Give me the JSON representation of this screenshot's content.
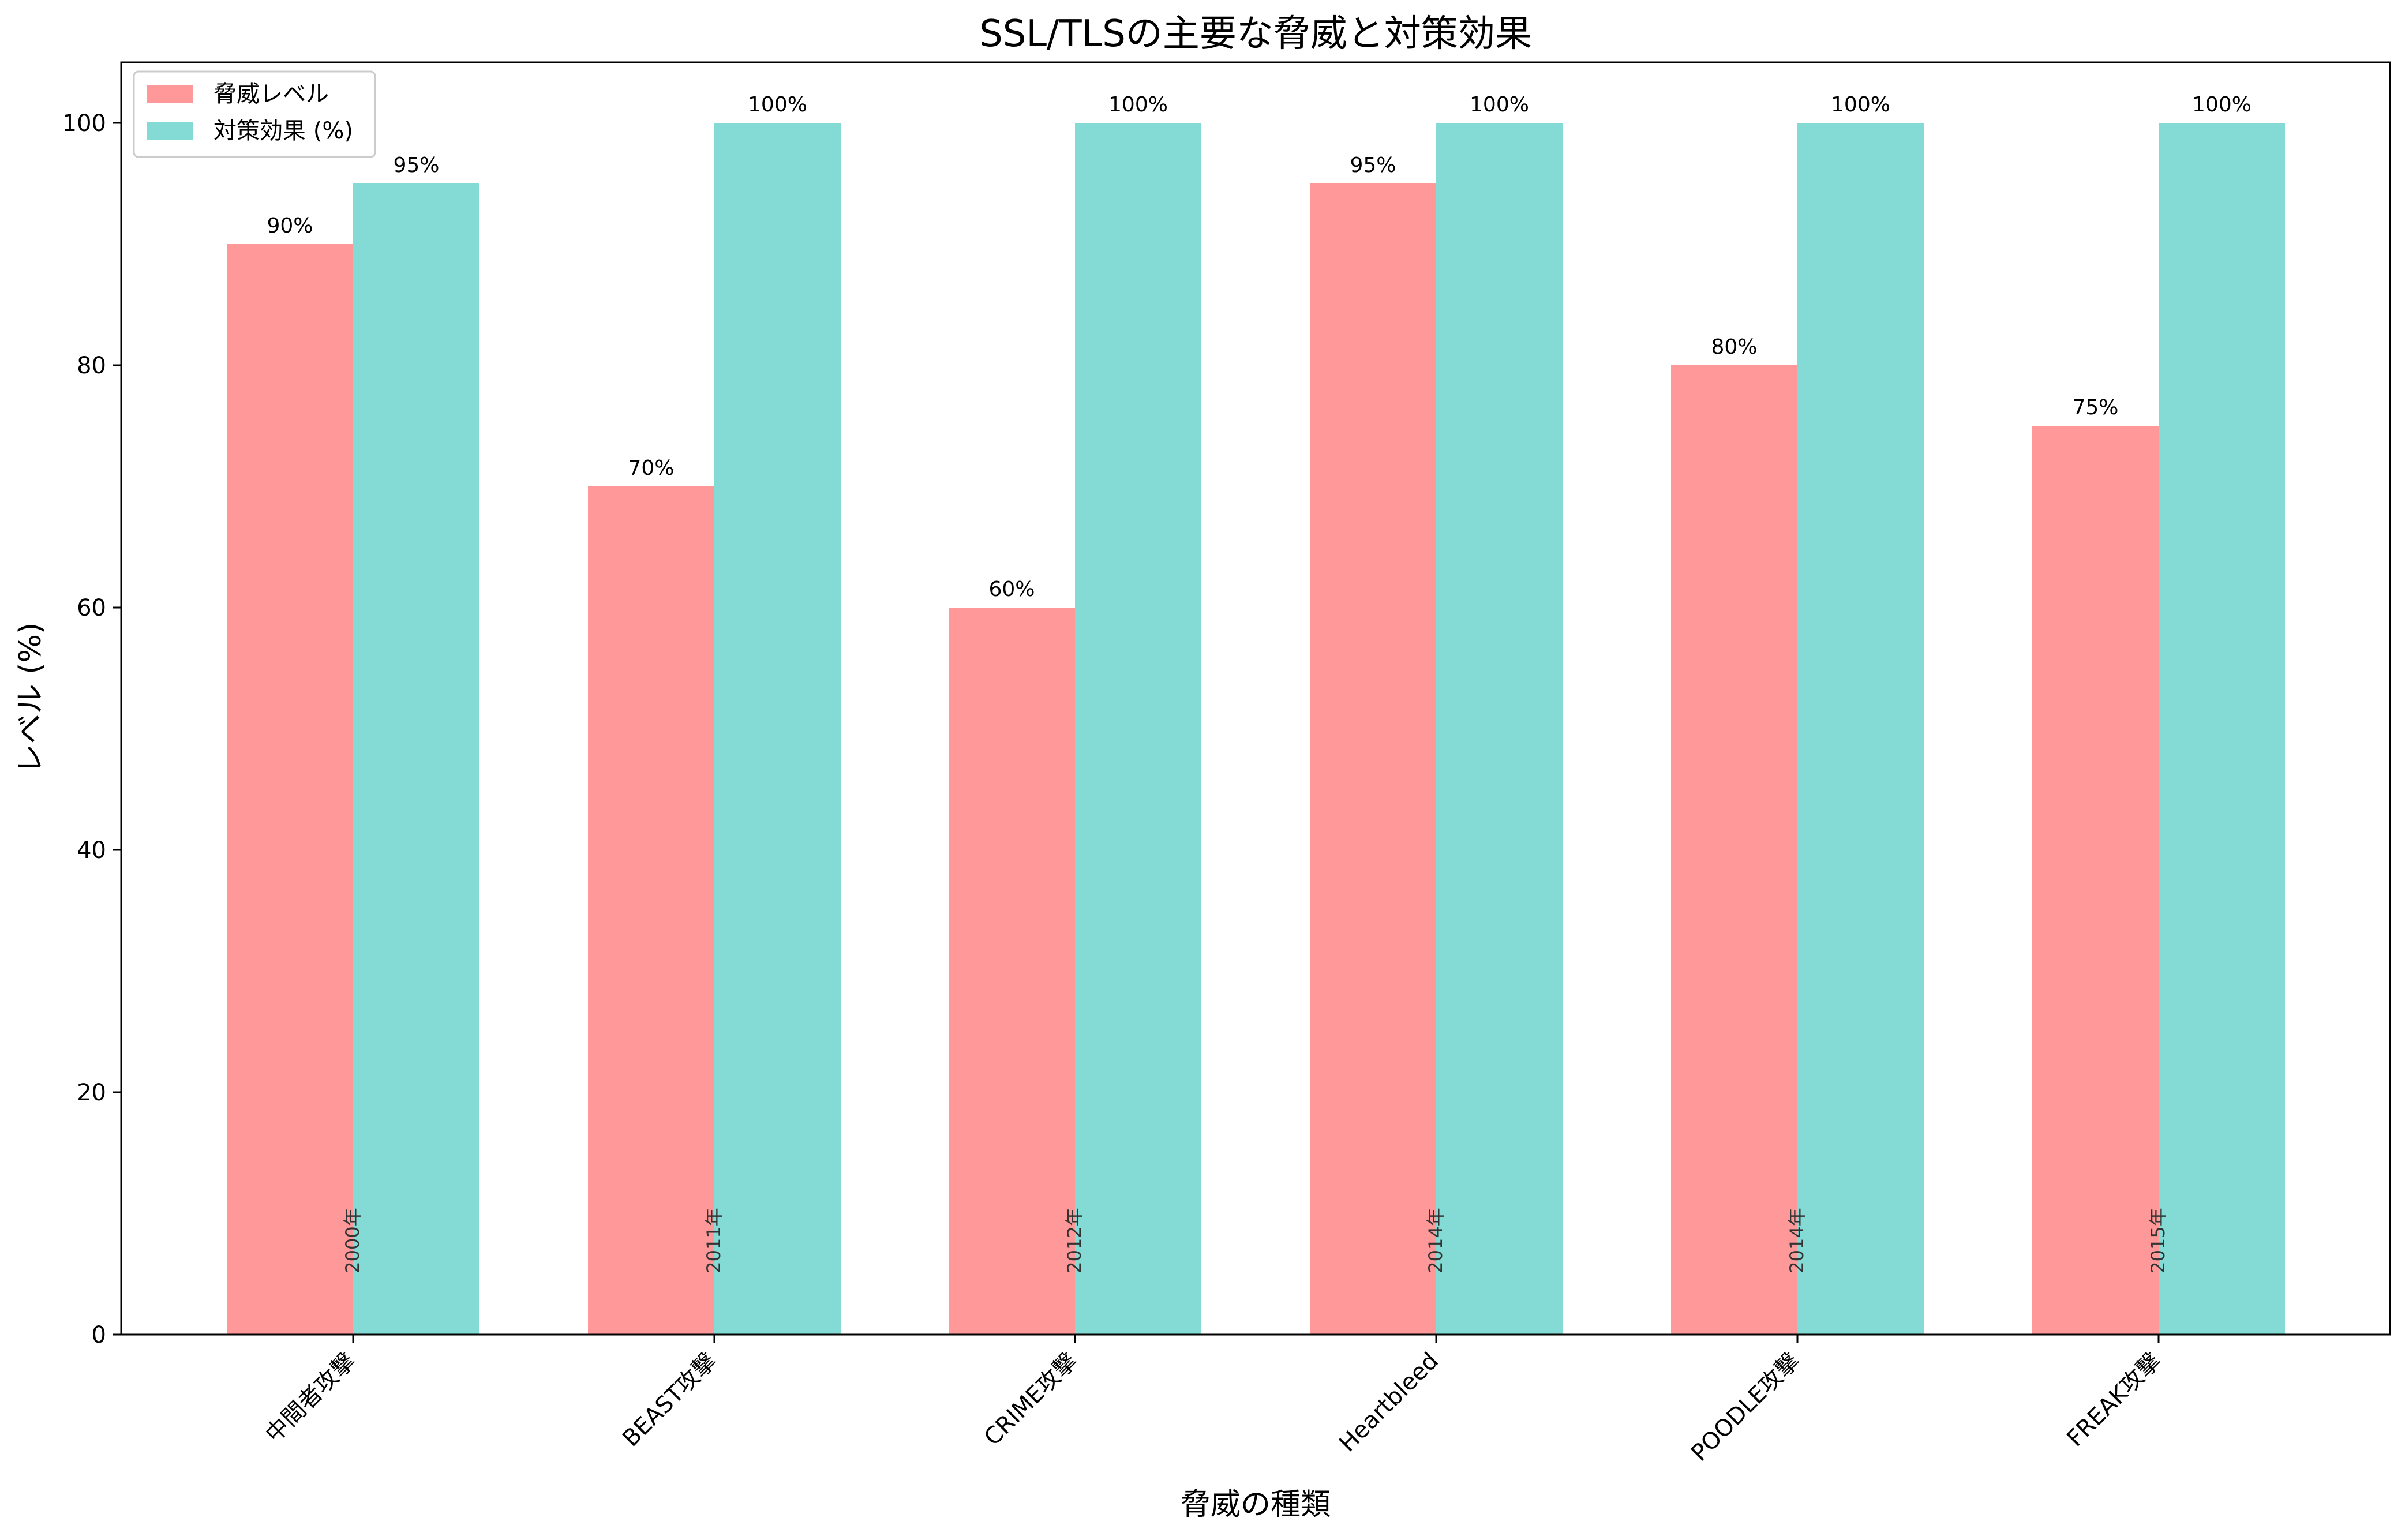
{
  "chart_data": {
    "type": "bar",
    "title": "SSL/TLSの主要な脅威と対策効果",
    "xlabel": "脅威の種類",
    "ylabel": "レベル (%)",
    "ylim": [
      0,
      105
    ],
    "yticks": [
      0,
      20,
      40,
      60,
      80,
      100
    ],
    "grid": false,
    "legend_position": "top-left",
    "categories": [
      "中間者攻撃",
      "BEAST攻撃",
      "CRIME攻撃",
      "Heartbleed",
      "POODLE攻撃",
      "FREAK攻撃"
    ],
    "years": [
      "2000年",
      "2011年",
      "2012年",
      "2014年",
      "2014年",
      "2015年"
    ],
    "series": [
      {
        "name": "脅威レベル",
        "color": "#FF9999",
        "values": [
          90,
          70,
          60,
          95,
          80,
          75
        ],
        "labels": [
          "90%",
          "70%",
          "60%",
          "95%",
          "80%",
          "75%"
        ]
      },
      {
        "name": "対策効果 (%)",
        "color": "#84DBD5",
        "values": [
          95,
          100,
          100,
          100,
          100,
          100
        ],
        "labels": [
          "95%",
          "100%",
          "100%",
          "100%",
          "100%",
          "100%"
        ]
      }
    ]
  }
}
